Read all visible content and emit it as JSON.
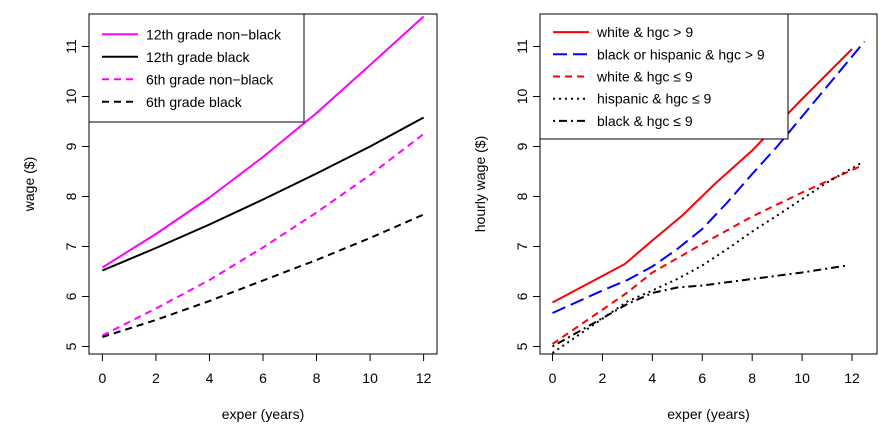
{
  "chart_data": [
    {
      "type": "line",
      "xlabel": "exper (years)",
      "ylabel": "wage ($)",
      "xlim": [
        -0.5,
        12.5
      ],
      "ylim": [
        4.85,
        11.65
      ],
      "xticks": [
        0,
        2,
        4,
        6,
        8,
        10,
        12
      ],
      "yticks": [
        5,
        6,
        7,
        8,
        9,
        10,
        11
      ],
      "grid": false,
      "legend_position": "top-left",
      "series": [
        {
          "name": "12th grade non−black",
          "color": "#ff00ff",
          "dash": "solid",
          "x": [
            0,
            2,
            4,
            6,
            8,
            10,
            12
          ],
          "y": [
            6.58,
            7.25,
            7.98,
            8.79,
            9.67,
            10.63,
            11.6
          ]
        },
        {
          "name": "12th grade black",
          "color": "#000000",
          "dash": "solid",
          "x": [
            0,
            2,
            4,
            6,
            8,
            10,
            12
          ],
          "y": [
            6.52,
            6.97,
            7.44,
            7.94,
            8.46,
            9.0,
            9.58
          ]
        },
        {
          "name": "6th grade non−black",
          "color": "#ff00ff",
          "dash": "dashed",
          "x": [
            0,
            2,
            4,
            6,
            8,
            10,
            12
          ],
          "y": [
            5.22,
            5.76,
            6.33,
            6.98,
            7.68,
            8.43,
            9.25
          ]
        },
        {
          "name": "6th grade black",
          "color": "#000000",
          "dash": "dashed",
          "x": [
            0,
            2,
            4,
            6,
            8,
            10,
            12
          ],
          "y": [
            5.19,
            5.53,
            5.91,
            6.32,
            6.73,
            7.17,
            7.64
          ]
        }
      ]
    },
    {
      "type": "line",
      "xlabel": "exper (years)",
      "ylabel": "hourly wage ($)",
      "xlim": [
        -0.5,
        13.0
      ],
      "ylim": [
        4.85,
        11.65
      ],
      "xticks": [
        0,
        2,
        4,
        6,
        8,
        10,
        12
      ],
      "yticks": [
        5,
        6,
        7,
        8,
        9,
        10,
        11
      ],
      "grid": false,
      "legend_position": "top-left",
      "series": [
        {
          "name": "white & hgc > 9",
          "color": "#ff0000",
          "dash": "solid",
          "x": [
            0,
            2.9,
            4,
            5.2,
            6.5,
            8,
            10,
            12
          ],
          "y": [
            5.88,
            6.65,
            7.12,
            7.62,
            8.25,
            8.92,
            9.95,
            10.95
          ]
        },
        {
          "name": "black or hispanic & hgc > 9",
          "color": "#0000ff",
          "dash": "longdash",
          "x": [
            0,
            2,
            3,
            4,
            5,
            6,
            7,
            8,
            9,
            10,
            11,
            12.5
          ],
          "y": [
            5.67,
            6.12,
            6.33,
            6.6,
            6.95,
            7.35,
            7.88,
            8.45,
            9.0,
            9.6,
            10.2,
            11.1
          ]
        },
        {
          "name": "white & hgc ≤ 9",
          "color": "#ff0000",
          "dash": "dashed",
          "x": [
            0,
            3,
            4,
            6,
            8,
            10,
            12.4
          ],
          "y": [
            5.05,
            6.08,
            6.48,
            7.05,
            7.6,
            8.08,
            8.62
          ]
        },
        {
          "name": "hispanic & hgc ≤ 9",
          "color": "#000000",
          "dash": "dotted",
          "x": [
            0,
            3,
            4,
            5,
            6,
            7,
            8,
            9,
            10,
            11,
            12.4
          ],
          "y": [
            4.87,
            5.9,
            6.12,
            6.35,
            6.62,
            6.95,
            7.3,
            7.62,
            7.95,
            8.28,
            8.68
          ]
        },
        {
          "name": "black & hgc ≤ 9",
          "color": "#000000",
          "dash": "dotdash",
          "x": [
            0,
            3,
            4,
            5,
            6,
            8,
            10,
            11.8
          ],
          "y": [
            5.0,
            5.85,
            6.07,
            6.18,
            6.22,
            6.35,
            6.48,
            6.62
          ]
        }
      ]
    }
  ]
}
